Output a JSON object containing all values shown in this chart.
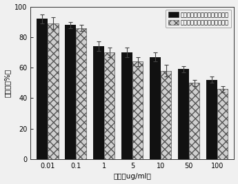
{
  "categories": [
    "0.01",
    "0.1",
    "1",
    "5",
    "10",
    "50",
    "100"
  ],
  "black_values": [
    92,
    88,
    74,
    70,
    67,
    59,
    52
  ],
  "gray_values": [
    89,
    86,
    70,
    64,
    58,
    50,
    46
  ],
  "black_errors": [
    3,
    2,
    3,
    3,
    3,
    2,
    2
  ],
  "gray_errors": [
    4,
    2,
    3,
    3,
    4,
    2,
    2
  ],
  "ylabel": "存活率（%）",
  "xlabel": "浓度（ug/ml）",
  "legend_black": "戊二醛为交联剂的白蛋白纳米粒",
  "legend_gray": "微流控芯片制备的白蛋白纳米粒",
  "ylim": [
    0,
    100
  ],
  "yticks": [
    0,
    20,
    40,
    60,
    80,
    100
  ],
  "black_color": "#111111",
  "bg_color": "#f0f0f0",
  "plot_bg": "#f0f0f0",
  "legend_fontsize": 6.0,
  "axis_fontsize": 7.5,
  "tick_fontsize": 7.0,
  "bar_width": 0.38
}
